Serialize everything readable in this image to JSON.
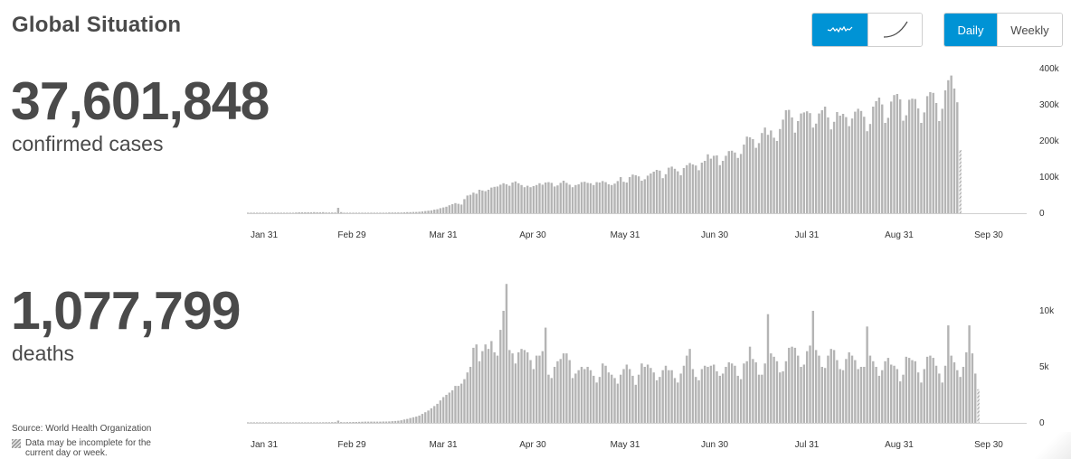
{
  "title": "Global Situation",
  "controls": {
    "chart_toggle": [
      {
        "icon": "line-wave-icon",
        "active": true
      },
      {
        "icon": "line-curve-icon",
        "active": false
      }
    ],
    "period_toggle": [
      {
        "label": "Daily",
        "active": true
      },
      {
        "label": "Weekly",
        "active": false
      }
    ],
    "accent_color": "#0093d5"
  },
  "cases": {
    "number": "37,601,848",
    "label": "confirmed cases"
  },
  "deaths": {
    "number": "1,077,799",
    "label": "deaths"
  },
  "source": "Source:  World Health Organization",
  "note": "Data may be incomplete for the current day or week.",
  "chart_data": [
    {
      "type": "bar",
      "name": "cases",
      "bar_color": "#b4b4b4",
      "last_bar_hatched": true,
      "x_ticks": [
        "Jan 31",
        "Feb 29",
        "Mar 31",
        "Apr 30",
        "May 31",
        "Jun 30",
        "Jul 31",
        "Aug 31",
        "Sep 30"
      ],
      "y_ticks": [
        "400k",
        "300k",
        "200k",
        "100k",
        "0"
      ],
      "ylim": [
        0,
        400000
      ],
      "start_date": "2020-01-04",
      "values": [
        0,
        0,
        0,
        0,
        0,
        0,
        0,
        0,
        0,
        0,
        0,
        0,
        0,
        0,
        1000,
        1500,
        2000,
        2500,
        2500,
        2500,
        2500,
        2500,
        3000,
        2500,
        2500,
        3000,
        2000,
        2000,
        2000,
        2000,
        15000,
        3000,
        1500,
        1500,
        1500,
        1500,
        1500,
        1000,
        1000,
        1500,
        1500,
        1500,
        1500,
        1500,
        1500,
        1500,
        1500,
        2000,
        2000,
        2000,
        2000,
        2000,
        2500,
        3000,
        3000,
        3500,
        3500,
        4000,
        5000,
        6000,
        7000,
        8000,
        10000,
        11000,
        14000,
        16000,
        18000,
        22000,
        25000,
        28000,
        26000,
        24000,
        39000,
        49000,
        51000,
        57000,
        54000,
        65000,
        63000,
        61000,
        65000,
        71000,
        73000,
        74000,
        79000,
        83000,
        80000,
        76000,
        85000,
        88000,
        83000,
        78000,
        72000,
        76000,
        72000,
        75000,
        78000,
        83000,
        79000,
        85000,
        86000,
        84000,
        74000,
        77000,
        84000,
        90000,
        84000,
        79000,
        72000,
        78000,
        80000,
        86000,
        87000,
        84000,
        83000,
        78000,
        86000,
        85000,
        89000,
        86000,
        80000,
        78000,
        82000,
        89000,
        100000,
        87000,
        85000,
        100000,
        107000,
        105000,
        102000,
        90000,
        94000,
        104000,
        110000,
        115000,
        120000,
        118000,
        97000,
        108000,
        126000,
        129000,
        123000,
        116000,
        105000,
        125000,
        133000,
        139000,
        135000,
        132000,
        119000,
        140000,
        145000,
        163000,
        151000,
        159000,
        160000,
        133000,
        145000,
        159000,
        172000,
        173000,
        168000,
        153000,
        164000,
        190000,
        212000,
        210000,
        205000,
        181000,
        194000,
        222000,
        237000,
        217000,
        229000,
        209000,
        200000,
        233000,
        259000,
        285000,
        286000,
        265000,
        223000,
        255000,
        276000,
        279000,
        282000,
        277000,
        237000,
        248000,
        276000,
        285000,
        295000,
        265000,
        232000,
        253000,
        280000,
        270000,
        275000,
        266000,
        241000,
        262000,
        281000,
        289000,
        283000,
        267000,
        227000,
        247000,
        295000,
        310000,
        320000,
        301000,
        250000,
        264000,
        309000,
        327000,
        330000,
        315000,
        256000,
        271000,
        314000,
        317000,
        316000,
        290000,
        250000,
        279000,
        324000,
        335000,
        333000,
        305000,
        255000,
        289000,
        340000,
        368000,
        381000,
        345000,
        307000,
        175000
      ]
    },
    {
      "type": "bar",
      "name": "deaths",
      "bar_color": "#b4b4b4",
      "last_bar_hatched": true,
      "x_ticks": [
        "Jan 31",
        "Feb 29",
        "Mar 31",
        "Apr 30",
        "May 31",
        "Jun 30",
        "Jul 31",
        "Aug 31",
        "Sep 30"
      ],
      "y_ticks": [
        "10k",
        "5k",
        "0"
      ],
      "ylim": [
        0,
        12500
      ],
      "start_date": "2020-01-04",
      "values": [
        0,
        0,
        0,
        0,
        0,
        0,
        0,
        0,
        0,
        0,
        0,
        0,
        0,
        0,
        10,
        15,
        20,
        25,
        30,
        30,
        35,
        40,
        45,
        50,
        50,
        55,
        60,
        60,
        65,
        70,
        200,
        70,
        60,
        70,
        70,
        80,
        80,
        90,
        100,
        110,
        110,
        110,
        110,
        110,
        110,
        120,
        120,
        130,
        150,
        170,
        190,
        230,
        300,
        350,
        430,
        500,
        560,
        650,
        800,
        950,
        1100,
        1300,
        1500,
        1700,
        2000,
        2300,
        2500,
        2700,
        2900,
        3300,
        3300,
        3500,
        3900,
        4500,
        5000,
        6700,
        7000,
        5500,
        6400,
        7000,
        6600,
        7300,
        6300,
        6000,
        8300,
        10000,
        12400,
        6500,
        6200,
        5300,
        6300,
        6600,
        6500,
        6300,
        5600,
        4800,
        6000,
        6000,
        6400,
        8500,
        4300,
        4000,
        5000,
        5500,
        5700,
        6200,
        6200,
        5600,
        4000,
        4400,
        4700,
        5000,
        4800,
        5000,
        4700,
        4200,
        3600,
        4100,
        5300,
        5100,
        4500,
        4300,
        4000,
        3500,
        4300,
        4800,
        5200,
        4800,
        4200,
        3400,
        4300,
        5300,
        5000,
        5200,
        4900,
        4500,
        3800,
        4100,
        4700,
        5100,
        4700,
        4700,
        4000,
        3600,
        4400,
        5100,
        6000,
        6600,
        4800,
        4100,
        3800,
        4800,
        5100,
        5000,
        5100,
        5200,
        4600,
        4200,
        4400,
        5000,
        5400,
        5300,
        5100,
        4200,
        3900,
        5300,
        5500,
        6800,
        5700,
        5400,
        4300,
        4300,
        5300,
        9700,
        6200,
        5900,
        5500,
        4500,
        4600,
        5500,
        6700,
        6800,
        6700,
        6000,
        5000,
        5200,
        6400,
        6900,
        10000,
        6500,
        6000,
        5000,
        4900,
        6000,
        6600,
        6500,
        5600,
        4800,
        4700,
        5700,
        6300,
        6000,
        5600,
        4800,
        5000,
        5000,
        8600,
        6000,
        5500,
        5000,
        4200,
        4700,
        5500,
        5800,
        5200,
        5100,
        4800,
        3700,
        4300,
        5900,
        5800,
        5600,
        5500,
        4500,
        3600,
        4800,
        5900,
        6000,
        5800,
        5100,
        4400,
        3600,
        5100,
        8700,
        6000,
        5400,
        4700,
        4100,
        5000,
        6300,
        8700,
        6200,
        4400,
        3000
      ]
    }
  ]
}
